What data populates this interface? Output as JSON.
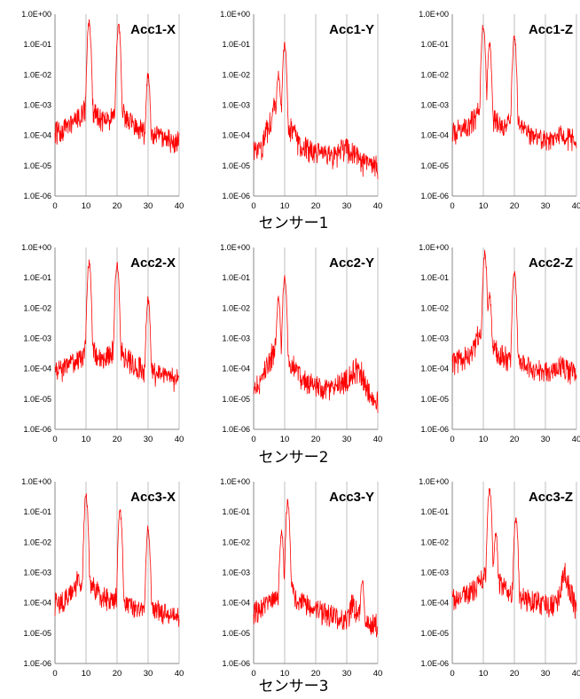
{
  "group_labels": [
    "センサー1",
    "センサー2",
    "センサー3"
  ],
  "chart_data": [
    {
      "type": "line",
      "title": "Acc1-X",
      "y_scale": "log",
      "ylim": [
        1e-06,
        1
      ],
      "xlim": [
        0,
        40
      ],
      "y_ticks": [
        "1.0E-06",
        "1.0E-05",
        "1.0E-04",
        "1.0E-03",
        "1.0E-02",
        "1.0E-01",
        "1.0E+00"
      ],
      "x_ticks": [
        "0",
        "10",
        "20",
        "30",
        "40"
      ],
      "grid": "vertical",
      "line_color": "#ff0000",
      "peaks": [
        [
          11,
          0.5
        ],
        [
          20.5,
          0.4
        ],
        [
          30,
          0.01
        ]
      ],
      "floor": [
        [
          0,
          1e-05
        ],
        [
          2,
          8e-05
        ],
        [
          7,
          0.0001
        ],
        [
          14,
          0.0001
        ],
        [
          18,
          0.0001
        ],
        [
          23,
          5e-05
        ],
        [
          27,
          1.2e-05
        ],
        [
          32,
          5e-05
        ],
        [
          40,
          1e-05
        ]
      ]
    },
    {
      "type": "line",
      "title": "Acc1-Y",
      "y_scale": "log",
      "ylim": [
        1e-06,
        1
      ],
      "xlim": [
        0,
        40
      ],
      "y_ticks": [
        "1.0E-06",
        "1.0E-05",
        "1.0E-04",
        "1.0E-03",
        "1.0E-02",
        "1.0E-01",
        "1.0E+00"
      ],
      "x_ticks": [
        "0",
        "10",
        "20",
        "30",
        "40"
      ],
      "grid": "vertical",
      "line_color": "#ff0000",
      "peaks": [
        [
          10,
          0.1
        ],
        [
          8,
          0.01
        ]
      ],
      "floor": [
        [
          0,
          1e-05
        ],
        [
          3,
          5e-05
        ],
        [
          7,
          0.001
        ],
        [
          13,
          0.0001
        ],
        [
          16,
          1.5e-05
        ],
        [
          22,
          1.5e-05
        ],
        [
          30,
          3e-05
        ],
        [
          36,
          1e-05
        ],
        [
          40,
          3e-06
        ]
      ]
    },
    {
      "type": "line",
      "title": "Acc1-Z",
      "y_scale": "log",
      "ylim": [
        1e-06,
        1
      ],
      "xlim": [
        0,
        40
      ],
      "y_ticks": [
        "1.0E-06",
        "1.0E-05",
        "1.0E-04",
        "1.0E-03",
        "1.0E-02",
        "1.0E-01",
        "1.0E+00"
      ],
      "x_ticks": [
        "0",
        "10",
        "20",
        "30",
        "40"
      ],
      "grid": "vertical",
      "line_color": "#ff0000",
      "peaks": [
        [
          10,
          0.45
        ],
        [
          12,
          0.1
        ],
        [
          20,
          0.2
        ]
      ],
      "floor": [
        [
          0,
          2e-05
        ],
        [
          4,
          5e-05
        ],
        [
          8,
          0.0002
        ],
        [
          15,
          5e-05
        ],
        [
          18,
          0.0001
        ],
        [
          24,
          3e-05
        ],
        [
          30,
          3e-05
        ],
        [
          35,
          0.0001
        ],
        [
          40,
          5e-05
        ]
      ]
    },
    {
      "type": "line",
      "title": "Acc2-X",
      "y_scale": "log",
      "ylim": [
        1e-06,
        1
      ],
      "xlim": [
        0,
        40
      ],
      "y_ticks": [
        "1.0E-06",
        "1.0E-05",
        "1.0E-04",
        "1.0E-03",
        "1.0E-02",
        "1.0E-01",
        "1.0E+00"
      ],
      "x_ticks": [
        "0",
        "10",
        "20",
        "30",
        "40"
      ],
      "grid": "vertical",
      "line_color": "#ff0000",
      "peaks": [
        [
          11,
          0.3
        ],
        [
          20,
          0.3
        ],
        [
          30,
          0.02
        ]
      ],
      "floor": [
        [
          0,
          3e-06
        ],
        [
          3,
          0.0001
        ],
        [
          8,
          0.0001
        ],
        [
          15,
          2e-05
        ],
        [
          18,
          0.0001
        ],
        [
          23,
          1e-05
        ],
        [
          26,
          6e-06
        ],
        [
          33,
          5e-05
        ],
        [
          40,
          2e-05
        ]
      ]
    },
    {
      "type": "line",
      "title": "Acc2-Y",
      "y_scale": "log",
      "ylim": [
        1e-06,
        1
      ],
      "xlim": [
        0,
        40
      ],
      "y_ticks": [
        "1.0E-06",
        "1.0E-05",
        "1.0E-04",
        "1.0E-03",
        "1.0E-02",
        "1.0E-01",
        "1.0E+00"
      ],
      "x_ticks": [
        "0",
        "10",
        "20",
        "30",
        "40"
      ],
      "grid": "vertical",
      "line_color": "#ff0000",
      "peaks": [
        [
          10,
          0.1
        ],
        [
          8,
          0.02
        ]
      ],
      "floor": [
        [
          0,
          3e-06
        ],
        [
          3,
          5e-05
        ],
        [
          7,
          0.0005
        ],
        [
          13,
          0.0001
        ],
        [
          16,
          2e-05
        ],
        [
          21,
          1e-05
        ],
        [
          28,
          3e-05
        ],
        [
          34,
          0.0001
        ],
        [
          40,
          2e-06
        ]
      ]
    },
    {
      "type": "line",
      "title": "Acc2-Z",
      "y_scale": "log",
      "ylim": [
        1e-06,
        1
      ],
      "xlim": [
        0,
        40
      ],
      "y_ticks": [
        "1.0E-06",
        "1.0E-05",
        "1.0E-04",
        "1.0E-03",
        "1.0E-02",
        "1.0E-01",
        "1.0E+00"
      ],
      "x_ticks": [
        "0",
        "10",
        "20",
        "30",
        "40"
      ],
      "grid": "vertical",
      "line_color": "#ff0000",
      "peaks": [
        [
          10.5,
          0.6
        ],
        [
          12,
          0.03
        ],
        [
          20,
          0.15
        ]
      ],
      "floor": [
        [
          0,
          1e-05
        ],
        [
          4,
          3e-05
        ],
        [
          8,
          0.001
        ],
        [
          16,
          5e-05
        ],
        [
          18,
          0.0001
        ],
        [
          24,
          1e-05
        ],
        [
          30,
          3e-05
        ],
        [
          35,
          0.0001
        ],
        [
          40,
          5e-05
        ]
      ]
    },
    {
      "type": "line",
      "title": "Acc3-X",
      "y_scale": "log",
      "ylim": [
        1e-06,
        1
      ],
      "xlim": [
        0,
        40
      ],
      "y_ticks": [
        "1.0E-06",
        "1.0E-05",
        "1.0E-04",
        "1.0E-03",
        "1.0E-02",
        "1.0E-01",
        "1.0E+00"
      ],
      "x_ticks": [
        "0",
        "10",
        "20",
        "30",
        "40"
      ],
      "grid": "vertical",
      "line_color": "#ff0000",
      "peaks": [
        [
          10,
          0.35
        ],
        [
          21,
          0.1
        ],
        [
          30,
          0.03
        ]
      ],
      "floor": [
        [
          0,
          1e-05
        ],
        [
          3,
          5e-05
        ],
        [
          7,
          0.0005
        ],
        [
          14,
          3e-05
        ],
        [
          18,
          3e-05
        ],
        [
          24,
          1e-05
        ],
        [
          27,
          1e-05
        ],
        [
          33,
          5e-05
        ],
        [
          40,
          5e-06
        ]
      ]
    },
    {
      "type": "line",
      "title": "Acc3-Y",
      "y_scale": "log",
      "ylim": [
        1e-06,
        1
      ],
      "xlim": [
        0,
        40
      ],
      "y_ticks": [
        "1.0E-06",
        "1.0E-05",
        "1.0E-04",
        "1.0E-03",
        "1.0E-02",
        "1.0E-01",
        "1.0E+00"
      ],
      "x_ticks": [
        "0",
        "10",
        "20",
        "30",
        "40"
      ],
      "grid": "vertical",
      "line_color": "#ff0000",
      "peaks": [
        [
          11,
          0.2
        ],
        [
          9,
          0.02
        ],
        [
          35,
          0.0006
        ]
      ],
      "floor": [
        [
          0,
          2e-06
        ],
        [
          2,
          3e-05
        ],
        [
          7,
          0.0001
        ],
        [
          14,
          1e-05
        ],
        [
          18,
          3e-05
        ],
        [
          24,
          2e-05
        ],
        [
          28,
          3e-06
        ],
        [
          32,
          0.0001
        ],
        [
          40,
          1.5e-06
        ]
      ]
    },
    {
      "type": "line",
      "title": "Acc3-Z",
      "y_scale": "log",
      "ylim": [
        1e-06,
        1
      ],
      "xlim": [
        0,
        40
      ],
      "y_ticks": [
        "1.0E-06",
        "1.0E-05",
        "1.0E-04",
        "1.0E-03",
        "1.0E-02",
        "1.0E-01",
        "1.0E+00"
      ],
      "x_ticks": [
        "0",
        "10",
        "20",
        "30",
        "40"
      ],
      "grid": "vertical",
      "line_color": "#ff0000",
      "peaks": [
        [
          12,
          0.6
        ],
        [
          20.5,
          0.06
        ],
        [
          14,
          0.02
        ]
      ],
      "floor": [
        [
          0,
          5e-06
        ],
        [
          4,
          2e-05
        ],
        [
          9,
          0.0003
        ],
        [
          16,
          0.0002
        ],
        [
          18,
          0.0001
        ],
        [
          24,
          1e-05
        ],
        [
          30,
          3e-06
        ],
        [
          36,
          0.001
        ],
        [
          40,
          5e-05
        ]
      ]
    }
  ]
}
